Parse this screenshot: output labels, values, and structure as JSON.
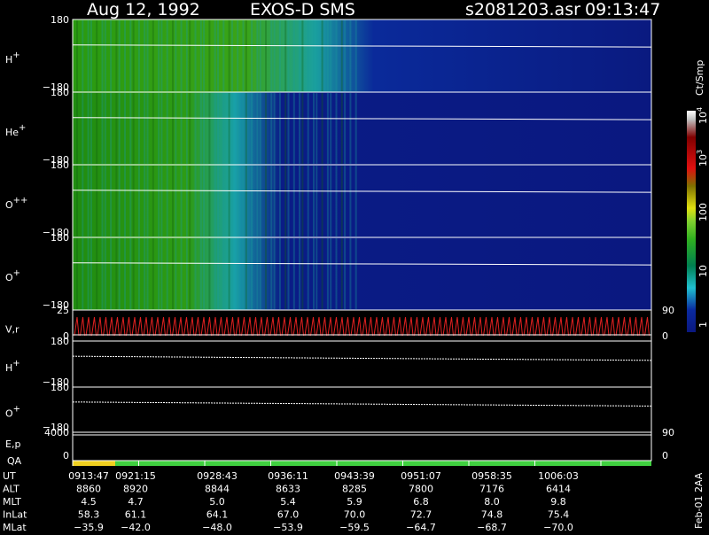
{
  "header": {
    "date": "Aug 12, 1992",
    "instrument": "EXOS-D SMS",
    "file": "s2081203.asr",
    "time": "09:13:47"
  },
  "panels": [
    {
      "label": "H",
      "sup": "+",
      "ticks": [
        "180",
        "−180"
      ]
    },
    {
      "label": "He",
      "sup": "+",
      "ticks": [
        "180",
        "−180"
      ]
    },
    {
      "label": "O",
      "sup": "++",
      "ticks": [
        "180",
        "−180"
      ]
    },
    {
      "label": "O",
      "sup": "+",
      "ticks": [
        "180",
        "−180"
      ]
    },
    {
      "label": "V,r",
      "sup": "",
      "ticks": [
        "25",
        "0"
      ],
      "right_ticks": [
        "90",
        "0"
      ]
    },
    {
      "label": "H",
      "sup": "+",
      "ticks": [
        "180",
        "−180"
      ]
    },
    {
      "label": "O",
      "sup": "+",
      "ticks": [
        "180",
        "−180"
      ]
    },
    {
      "label": "E,p",
      "label2": "QA",
      "sup": "",
      "ticks": [
        "4000",
        "0"
      ],
      "right_ticks": [
        "90",
        "0"
      ]
    }
  ],
  "colorbar": {
    "title": "Ct/Smp",
    "ticks": [
      {
        "base": "1",
        "exp": ""
      },
      {
        "base": "10",
        "exp": ""
      },
      {
        "base": "100",
        "exp": ""
      },
      {
        "base": "10",
        "exp": "3"
      },
      {
        "base": "10",
        "exp": "4"
      }
    ]
  },
  "table": {
    "rows": [
      {
        "name": "UT",
        "cells": [
          "0913:47",
          "0921:15",
          "0928:43",
          "0936:11",
          "0943:39",
          "0951:07",
          "0958:35",
          "1006:03"
        ]
      },
      {
        "name": "ALT",
        "cells": [
          "8860",
          "8920",
          "8844",
          "8633",
          "8285",
          "7800",
          "7176",
          "6414"
        ]
      },
      {
        "name": "MLT",
        "cells": [
          "4.5",
          "4.7",
          "5.0",
          "5.4",
          "5.9",
          "6.8",
          "8.0",
          "9.8"
        ]
      },
      {
        "name": "InLat",
        "cells": [
          "58.3",
          "61.1",
          "64.1",
          "67.0",
          "70.0",
          "72.7",
          "74.8",
          "75.4"
        ]
      },
      {
        "name": "MLat",
        "cells": [
          "−35.9",
          "−42.0",
          "−48.0",
          "−53.9",
          "−59.5",
          "−64.7",
          "−68.7",
          "−70.0"
        ]
      }
    ]
  },
  "footer": "Feb-01 2AA"
}
